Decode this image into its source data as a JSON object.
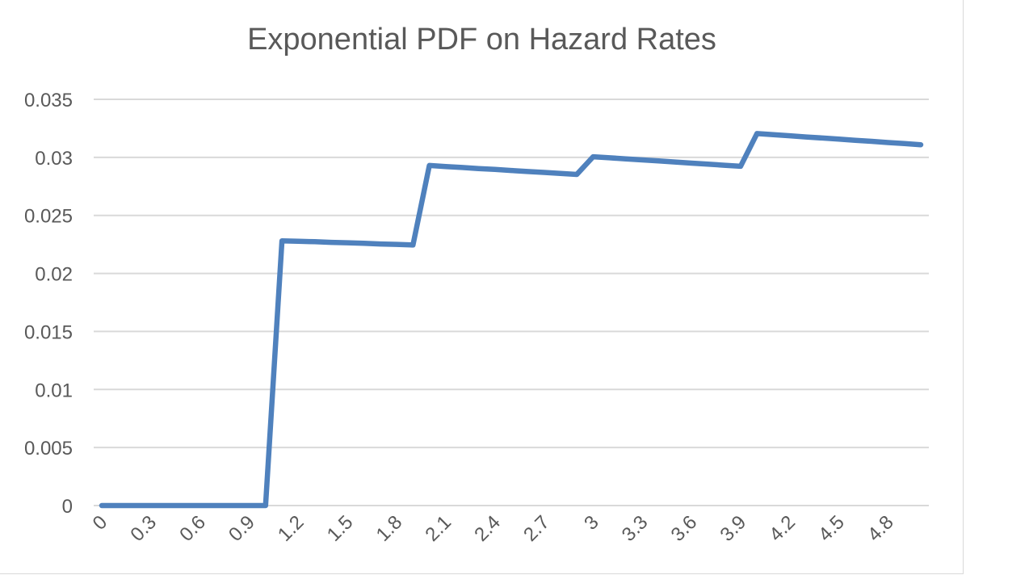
{
  "chart_data": {
    "type": "line",
    "title": "Exponential PDF on Hazard Rates",
    "xlabel": "",
    "ylabel": "",
    "x_tick_labels": [
      "0",
      "0.3",
      "0.6",
      "0.9",
      "1.2",
      "1.5",
      "1.8",
      "2.1",
      "2.4",
      "2.7",
      "3",
      "3.3",
      "3.6",
      "3.9",
      "4.2",
      "4.5",
      "4.8"
    ],
    "y_tick_labels": [
      "0",
      "0.005",
      "0.01",
      "0.015",
      "0.02",
      "0.025",
      "0.03",
      "0.035"
    ],
    "ylim": [
      0,
      0.035
    ],
    "grid": "horizontal",
    "legend": "none",
    "series": [
      {
        "color": "#4f81bd",
        "x": [
          0,
          0.1,
          0.2,
          0.3,
          0.4,
          0.5,
          0.6,
          0.7,
          0.8,
          0.9,
          1.0,
          1.1,
          1.2,
          1.3,
          1.4,
          1.5,
          1.6,
          1.7,
          1.8,
          1.9,
          2.0,
          2.1,
          2.2,
          2.3,
          2.4,
          2.5,
          2.6,
          2.7,
          2.8,
          2.9,
          3.0,
          3.1,
          3.2,
          3.3,
          3.4,
          3.5,
          3.6,
          3.7,
          3.8,
          3.9,
          4.0,
          4.1,
          4.2,
          4.3,
          4.4,
          4.5,
          4.6,
          4.7,
          4.8,
          4.9,
          5.0
        ],
        "values": [
          0,
          0,
          0,
          0,
          0,
          0,
          0,
          0,
          0,
          0,
          0,
          0.0228,
          0.02277,
          0.02273,
          0.02268,
          0.02264,
          0.02259,
          0.02254,
          0.0225,
          0.02245,
          0.0293,
          0.02921,
          0.02913,
          0.02904,
          0.02896,
          0.02887,
          0.02878,
          0.0287,
          0.02861,
          0.02853,
          0.03005,
          0.02996,
          0.02987,
          0.02978,
          0.02969,
          0.0296,
          0.0295,
          0.02941,
          0.02932,
          0.02923,
          0.03205,
          0.03195,
          0.03186,
          0.03176,
          0.03167,
          0.03157,
          0.03147,
          0.03138,
          0.03128,
          0.03119,
          0.03109
        ]
      }
    ]
  }
}
